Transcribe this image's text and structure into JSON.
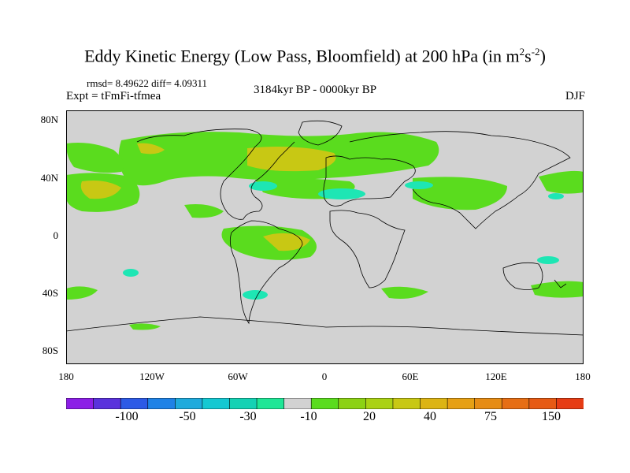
{
  "title": {
    "main": "Eddy Kinetic Energy (Low Pass, Bloomfield) at 200 hPa (in m",
    "sup1": "2",
    "mid": "s",
    "sup2": "-2",
    "end": ")"
  },
  "stats": "rmsd= 8.49622 diff= 4.09311",
  "expt": "Expt = tFmFi-tfmea",
  "period": "3184kyr BP - 0000kyr BP",
  "season": "DJF",
  "lat_labels": [
    "80N",
    "40N",
    "0",
    "40S",
    "80S"
  ],
  "lon_labels": [
    "180",
    "120W",
    "60W",
    "0",
    "60E",
    "120E",
    "180"
  ],
  "colorbar": {
    "labels": [
      "-100",
      "-50",
      "-30",
      "-10",
      "20",
      "40",
      "75",
      "150"
    ],
    "colors": [
      "#8c1ee6",
      "#5a32dc",
      "#2d5ae6",
      "#1e82e6",
      "#1eaadc",
      "#14c8d2",
      "#14d2b4",
      "#1ee696",
      "#d2d2d2",
      "#5adc1e",
      "#8cd214",
      "#aad214",
      "#c8c814",
      "#dcb414",
      "#e6a014",
      "#e68c14",
      "#e66e14",
      "#e65a14",
      "#e63c14"
    ]
  },
  "colors": {
    "land_bg": "#d2d2d2",
    "positive": "#5adc1e",
    "strong": "#c8c814",
    "negative": "#1ee6b4"
  }
}
